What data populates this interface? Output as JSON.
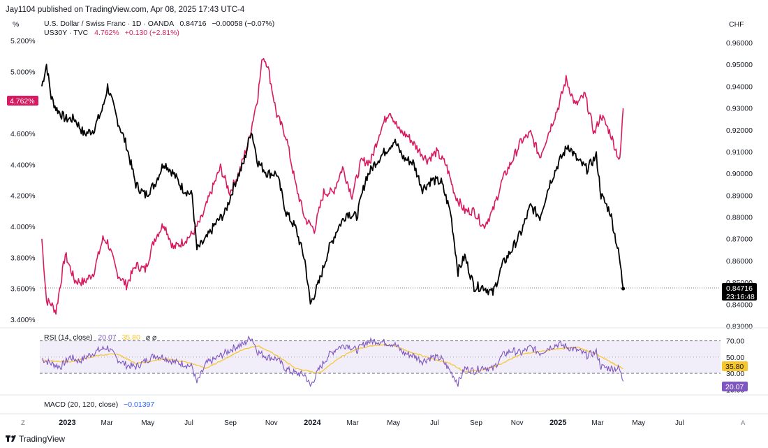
{
  "publisher_line": "Jay1104 published on TradingView.com, Apr 08, 2025 17:43 UTC-4",
  "left_unit": "%",
  "right_unit": "CHF",
  "legend": {
    "main_name": "U.S. Dollar / Swiss Franc · 1D · OANDA",
    "main_value": "0.84716",
    "main_change": "−0.00058 (−0.07%)",
    "second_name": "US30Y · TVC",
    "second_value": "4.762%",
    "second_change": "+0.130 (+2.81%)"
  },
  "badges": {
    "us30y_last": "4.762%",
    "usdchf_last": "0.84716",
    "countdown": "23:16:48",
    "rsi_ma": "35.80",
    "rsi_value": "20.07"
  },
  "rsi_label": {
    "name": "RSI (14, close)",
    "value": "20.07",
    "ma": "35.80"
  },
  "macd_label": {
    "name": "MACD (20, 120, close)",
    "value": "−0.01397"
  },
  "footer": {
    "brand": "TradingView",
    "left_button": "Z",
    "right_button": "A"
  },
  "colors": {
    "usdchf": "#000000",
    "us30y": "#d81b60",
    "rsi": "#7e57c2",
    "rsi_ma": "#f7c52c",
    "macd": "#2962ff"
  },
  "chart_data": {
    "type": "line",
    "x_axis_labels": [
      "2023",
      "Mar",
      "May",
      "Jul",
      "Sep",
      "Nov",
      "2024",
      "Mar",
      "May",
      "Jul",
      "Sep",
      "Nov",
      "2025",
      "Mar",
      "May",
      "Jul"
    ],
    "left_axis": {
      "label": "%",
      "ticks": [
        "5.200%",
        "5.000%",
        "4.800%",
        "4.600%",
        "4.400%",
        "4.200%",
        "4.000%",
        "3.800%",
        "3.600%",
        "3.400%"
      ],
      "range": [
        3.35,
        5.25
      ]
    },
    "right_axis": {
      "label": "CHF",
      "ticks": [
        "0.96000",
        "0.95000",
        "0.94000",
        "0.93000",
        "0.92000",
        "0.91000",
        "0.90000",
        "0.89000",
        "0.88000",
        "0.87000",
        "0.86000",
        "0.85000",
        "0.84000",
        "0.83000"
      ],
      "range": [
        0.8295,
        0.9645
      ]
    },
    "series": [
      {
        "name": "U.S. Dollar / Swiss Franc",
        "axis": "right",
        "points": [
          [
            "2022-11-24",
            0.94
          ],
          [
            "2022-12-01",
            0.95
          ],
          [
            "2022-12-08",
            0.935
          ],
          [
            "2022-12-15",
            0.93
          ],
          [
            "2022-12-29",
            0.925
          ],
          [
            "2023-01-12",
            0.925
          ],
          [
            "2023-01-26",
            0.918
          ],
          [
            "2023-02-09",
            0.92
          ],
          [
            "2023-02-23",
            0.93
          ],
          [
            "2023-03-02",
            0.94
          ],
          [
            "2023-03-16",
            0.925
          ],
          [
            "2023-03-30",
            0.913
          ],
          [
            "2023-04-13",
            0.895
          ],
          [
            "2023-04-27",
            0.89
          ],
          [
            "2023-05-11",
            0.895
          ],
          [
            "2023-05-25",
            0.905
          ],
          [
            "2023-06-08",
            0.9
          ],
          [
            "2023-06-22",
            0.893
          ],
          [
            "2023-07-06",
            0.89
          ],
          [
            "2023-07-13",
            0.865
          ],
          [
            "2023-07-27",
            0.87
          ],
          [
            "2023-08-10",
            0.877
          ],
          [
            "2023-08-24",
            0.882
          ],
          [
            "2023-09-07",
            0.895
          ],
          [
            "2023-09-21",
            0.905
          ],
          [
            "2023-10-02",
            0.92
          ],
          [
            "2023-10-12",
            0.905
          ],
          [
            "2023-10-26",
            0.9
          ],
          [
            "2023-11-09",
            0.9
          ],
          [
            "2023-11-23",
            0.882
          ],
          [
            "2023-12-07",
            0.875
          ],
          [
            "2023-12-21",
            0.86
          ],
          [
            "2023-12-29",
            0.84
          ],
          [
            "2024-01-11",
            0.85
          ],
          [
            "2024-01-25",
            0.865
          ],
          [
            "2024-02-08",
            0.875
          ],
          [
            "2024-02-22",
            0.882
          ],
          [
            "2024-03-07",
            0.88
          ],
          [
            "2024-03-21",
            0.898
          ],
          [
            "2024-04-04",
            0.905
          ],
          [
            "2024-04-18",
            0.91
          ],
          [
            "2024-05-02",
            0.915
          ],
          [
            "2024-05-16",
            0.907
          ],
          [
            "2024-05-30",
            0.905
          ],
          [
            "2024-06-13",
            0.893
          ],
          [
            "2024-06-27",
            0.897
          ],
          [
            "2024-07-11",
            0.896
          ],
          [
            "2024-07-25",
            0.882
          ],
          [
            "2024-08-05",
            0.855
          ],
          [
            "2024-08-15",
            0.862
          ],
          [
            "2024-08-29",
            0.848
          ],
          [
            "2024-09-12",
            0.848
          ],
          [
            "2024-09-26",
            0.845
          ],
          [
            "2024-10-10",
            0.858
          ],
          [
            "2024-10-24",
            0.865
          ],
          [
            "2024-11-07",
            0.873
          ],
          [
            "2024-11-21",
            0.885
          ],
          [
            "2024-12-05",
            0.88
          ],
          [
            "2024-12-19",
            0.895
          ],
          [
            "2025-01-02",
            0.905
          ],
          [
            "2025-01-16",
            0.913
          ],
          [
            "2025-01-30",
            0.906
          ],
          [
            "2025-02-13",
            0.902
          ],
          [
            "2025-02-27",
            0.908
          ],
          [
            "2025-03-06",
            0.89
          ],
          [
            "2025-03-20",
            0.882
          ],
          [
            "2025-04-02",
            0.862
          ],
          [
            "2025-04-08",
            0.84716
          ]
        ]
      },
      {
        "name": "US30Y",
        "axis": "left",
        "points": [
          [
            "2022-11-24",
            3.92
          ],
          [
            "2022-12-01",
            3.52
          ],
          [
            "2022-12-08",
            3.5
          ],
          [
            "2022-12-15",
            3.45
          ],
          [
            "2022-12-29",
            3.82
          ],
          [
            "2023-01-12",
            3.65
          ],
          [
            "2023-01-26",
            3.64
          ],
          [
            "2023-02-09",
            3.7
          ],
          [
            "2023-02-23",
            3.92
          ],
          [
            "2023-03-02",
            3.9
          ],
          [
            "2023-03-16",
            3.7
          ],
          [
            "2023-03-30",
            3.62
          ],
          [
            "2023-04-13",
            3.75
          ],
          [
            "2023-04-27",
            3.72
          ],
          [
            "2023-05-11",
            3.92
          ],
          [
            "2023-05-25",
            4.02
          ],
          [
            "2023-06-08",
            3.86
          ],
          [
            "2023-06-22",
            3.9
          ],
          [
            "2023-07-06",
            3.95
          ],
          [
            "2023-07-20",
            4.05
          ],
          [
            "2023-08-03",
            4.22
          ],
          [
            "2023-08-17",
            4.38
          ],
          [
            "2023-08-31",
            4.22
          ],
          [
            "2023-09-14",
            4.35
          ],
          [
            "2023-09-28",
            4.55
          ],
          [
            "2023-10-12",
            4.85
          ],
          [
            "2023-10-19",
            5.1
          ],
          [
            "2023-10-26",
            5.05
          ],
          [
            "2023-11-09",
            4.72
          ],
          [
            "2023-11-23",
            4.58
          ],
          [
            "2023-12-07",
            4.27
          ],
          [
            "2023-12-21",
            4.05
          ],
          [
            "2024-01-04",
            3.98
          ],
          [
            "2024-01-18",
            4.22
          ],
          [
            "2024-02-01",
            4.22
          ],
          [
            "2024-02-15",
            4.38
          ],
          [
            "2024-02-29",
            4.2
          ],
          [
            "2024-03-14",
            4.42
          ],
          [
            "2024-03-28",
            4.42
          ],
          [
            "2024-04-11",
            4.62
          ],
          [
            "2024-04-25",
            4.75
          ],
          [
            "2024-05-09",
            4.62
          ],
          [
            "2024-05-23",
            4.58
          ],
          [
            "2024-06-06",
            4.5
          ],
          [
            "2024-06-20",
            4.43
          ],
          [
            "2024-07-04",
            4.48
          ],
          [
            "2024-07-18",
            4.4
          ],
          [
            "2024-08-01",
            4.2
          ],
          [
            "2024-08-15",
            4.1
          ],
          [
            "2024-08-29",
            4.1
          ],
          [
            "2024-09-12",
            4.0
          ],
          [
            "2024-09-26",
            4.1
          ],
          [
            "2024-10-10",
            4.3
          ],
          [
            "2024-10-24",
            4.42
          ],
          [
            "2024-11-07",
            4.55
          ],
          [
            "2024-11-21",
            4.6
          ],
          [
            "2024-12-05",
            4.45
          ],
          [
            "2024-12-19",
            4.62
          ],
          [
            "2025-01-02",
            4.78
          ],
          [
            "2025-01-13",
            4.95
          ],
          [
            "2025-01-27",
            4.78
          ],
          [
            "2025-02-10",
            4.85
          ],
          [
            "2025-02-24",
            4.6
          ],
          [
            "2025-03-06",
            4.72
          ],
          [
            "2025-03-20",
            4.6
          ],
          [
            "2025-04-03",
            4.42
          ],
          [
            "2025-04-08",
            4.762
          ]
        ]
      }
    ]
  },
  "rsi_data": {
    "type": "line",
    "ticks": [
      "70.00",
      "50.00",
      "30.00",
      "10.00"
    ],
    "range": [
      6,
      80
    ],
    "band": [
      30,
      70
    ],
    "series": [
      {
        "name": "RSI",
        "points": [
          [
            "2022-11-24",
            48
          ],
          [
            "2022-12-08",
            42
          ],
          [
            "2022-12-22",
            38
          ],
          [
            "2023-01-05",
            50
          ],
          [
            "2023-01-19",
            45
          ],
          [
            "2023-02-02",
            52
          ],
          [
            "2023-02-16",
            58
          ],
          [
            "2023-03-02",
            62
          ],
          [
            "2023-03-16",
            48
          ],
          [
            "2023-03-30",
            40
          ],
          [
            "2023-04-13",
            38
          ],
          [
            "2023-04-27",
            45
          ],
          [
            "2023-05-11",
            52
          ],
          [
            "2023-05-25",
            50
          ],
          [
            "2023-06-08",
            44
          ],
          [
            "2023-06-22",
            42
          ],
          [
            "2023-07-06",
            38
          ],
          [
            "2023-07-13",
            18
          ],
          [
            "2023-07-27",
            42
          ],
          [
            "2023-08-10",
            48
          ],
          [
            "2023-08-24",
            55
          ],
          [
            "2023-09-07",
            62
          ],
          [
            "2023-09-21",
            66
          ],
          [
            "2023-10-02",
            75
          ],
          [
            "2023-10-12",
            56
          ],
          [
            "2023-10-26",
            50
          ],
          [
            "2023-11-09",
            48
          ],
          [
            "2023-11-23",
            35
          ],
          [
            "2023-12-07",
            30
          ],
          [
            "2023-12-21",
            28
          ],
          [
            "2023-12-29",
            14
          ],
          [
            "2024-01-11",
            35
          ],
          [
            "2024-01-25",
            52
          ],
          [
            "2024-02-08",
            62
          ],
          [
            "2024-02-22",
            65
          ],
          [
            "2024-03-07",
            58
          ],
          [
            "2024-03-21",
            68
          ],
          [
            "2024-04-04",
            70
          ],
          [
            "2024-04-18",
            68
          ],
          [
            "2024-05-02",
            66
          ],
          [
            "2024-05-16",
            55
          ],
          [
            "2024-05-30",
            52
          ],
          [
            "2024-06-13",
            45
          ],
          [
            "2024-06-27",
            50
          ],
          [
            "2024-07-11",
            48
          ],
          [
            "2024-07-25",
            32
          ],
          [
            "2024-08-05",
            18
          ],
          [
            "2024-08-15",
            36
          ],
          [
            "2024-08-29",
            33
          ],
          [
            "2024-09-12",
            38
          ],
          [
            "2024-09-26",
            35
          ],
          [
            "2024-10-10",
            52
          ],
          [
            "2024-10-24",
            58
          ],
          [
            "2024-11-07",
            55
          ],
          [
            "2024-11-21",
            62
          ],
          [
            "2024-12-05",
            55
          ],
          [
            "2024-12-19",
            62
          ],
          [
            "2025-01-02",
            66
          ],
          [
            "2025-01-16",
            62
          ],
          [
            "2025-01-30",
            58
          ],
          [
            "2025-02-13",
            52
          ],
          [
            "2025-02-27",
            56
          ],
          [
            "2025-03-06",
            38
          ],
          [
            "2025-03-20",
            36
          ],
          [
            "2025-04-02",
            36
          ],
          [
            "2025-04-08",
            20.07
          ]
        ]
      },
      {
        "name": "RSI MA",
        "points": [
          [
            "2022-11-24",
            46
          ],
          [
            "2023-01-05",
            44
          ],
          [
            "2023-02-16",
            52
          ],
          [
            "2023-03-16",
            54
          ],
          [
            "2023-04-13",
            42
          ],
          [
            "2023-05-25",
            48
          ],
          [
            "2023-06-22",
            45
          ],
          [
            "2023-07-27",
            36
          ],
          [
            "2023-08-24",
            48
          ],
          [
            "2023-09-21",
            60
          ],
          [
            "2023-10-12",
            64
          ],
          [
            "2023-11-09",
            52
          ],
          [
            "2023-12-07",
            36
          ],
          [
            "2024-01-11",
            30
          ],
          [
            "2024-02-08",
            48
          ],
          [
            "2024-03-07",
            60
          ],
          [
            "2024-04-04",
            65
          ],
          [
            "2024-05-02",
            64
          ],
          [
            "2024-05-30",
            55
          ],
          [
            "2024-06-27",
            48
          ],
          [
            "2024-07-25",
            42
          ],
          [
            "2024-08-15",
            32
          ],
          [
            "2024-09-12",
            34
          ],
          [
            "2024-10-10",
            42
          ],
          [
            "2024-11-07",
            54
          ],
          [
            "2024-12-05",
            57
          ],
          [
            "2025-01-02",
            60
          ],
          [
            "2025-01-30",
            62
          ],
          [
            "2025-02-27",
            54
          ],
          [
            "2025-03-20",
            44
          ],
          [
            "2025-04-08",
            35.8
          ]
        ]
      }
    ]
  }
}
